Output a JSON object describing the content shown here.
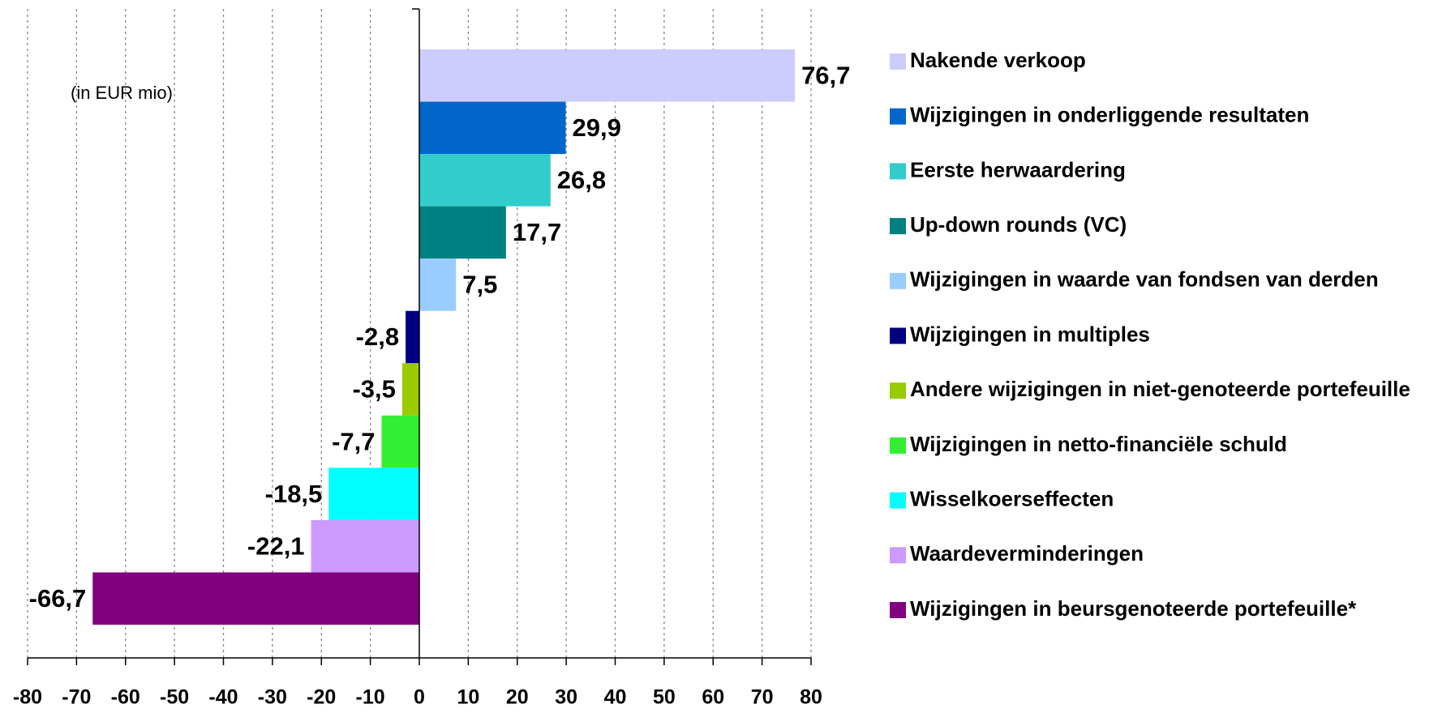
{
  "chart_data": {
    "type": "hbar",
    "annotation": "(in EUR mio)",
    "categories": [
      "Nakende verkoop",
      "Wijzigingen in onderliggende resultaten",
      "Eerste herwaardering",
      "Up-down rounds (VC)",
      "Wijzigingen in waarde van fondsen van derden",
      "Wijzigingen in multiples",
      "Andere wijzigingen in niet-genoteerde portefeuille",
      "Wijzigingen in netto-financiële schuld",
      "Wisselkoerseffecten",
      "Waardeverminderingen",
      "Wijzigingen in beursgenoteerde portefeuille*"
    ],
    "values": [
      76.7,
      29.9,
      26.8,
      17.7,
      7.5,
      -2.8,
      -3.5,
      -7.7,
      -18.5,
      -22.1,
      -66.7
    ],
    "value_labels": [
      "76,7",
      "29,9",
      "26,8",
      "17,7",
      "7,5",
      "-2,8",
      "-3,5",
      "-7,7",
      "-18,5",
      "-22,1",
      "-66,7"
    ],
    "colors": [
      "#ccccff",
      "#0066cc",
      "#33cccc",
      "#008080",
      "#99ccff",
      "#000080",
      "#99cc00",
      "#33ee33",
      "#00ffff",
      "#cc99ff",
      "#800080"
    ],
    "xlim": [
      -80,
      80
    ],
    "xticks": [
      -80,
      -70,
      -60,
      -50,
      -40,
      -30,
      -20,
      -10,
      0,
      10,
      20,
      30,
      40,
      50,
      60,
      70,
      80
    ],
    "grid": true,
    "legend": "right"
  }
}
